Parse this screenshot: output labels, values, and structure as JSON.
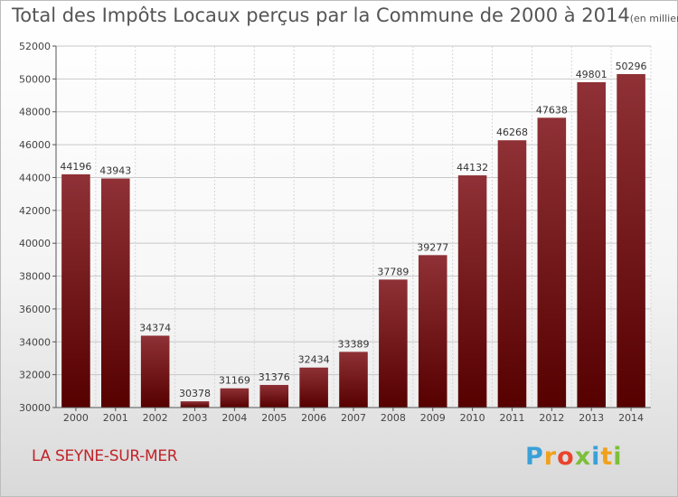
{
  "header": {
    "title": "Total des Impôts Locaux perçus par la Commune de 2000 à 2014",
    "unit": "(en milliers d'€)"
  },
  "footer": {
    "commune": "LA SEYNE-SUR-MER",
    "logo_letters": [
      "P",
      "r",
      "o",
      "x",
      "i",
      "t",
      "i"
    ],
    "logo_colors": [
      "#3aa0d8",
      "#f0a11c",
      "#e8452c",
      "#7cbf3a",
      "#3aa0d8",
      "#f0a11c",
      "#7cbf3a"
    ]
  },
  "chart_data": {
    "type": "bar",
    "title": "Total des Impôts Locaux perçus par la Commune de 2000 à 2014",
    "xlabel": "",
    "ylabel": "",
    "categories": [
      "2000",
      "2001",
      "2002",
      "2003",
      "2004",
      "2005",
      "2006",
      "2007",
      "2008",
      "2009",
      "2010",
      "2011",
      "2012",
      "2013",
      "2014"
    ],
    "values": [
      44196,
      43943,
      34374,
      30378,
      31169,
      31376,
      32434,
      33389,
      37789,
      39277,
      44132,
      46268,
      47638,
      49801,
      50296
    ],
    "ylim": [
      30000,
      52000
    ],
    "yticks": [
      30000,
      32000,
      34000,
      36000,
      38000,
      40000,
      42000,
      44000,
      46000,
      48000,
      50000,
      52000
    ],
    "grid": true,
    "bar_color_top": "#8f3136",
    "bar_color_bottom": "#560000"
  }
}
